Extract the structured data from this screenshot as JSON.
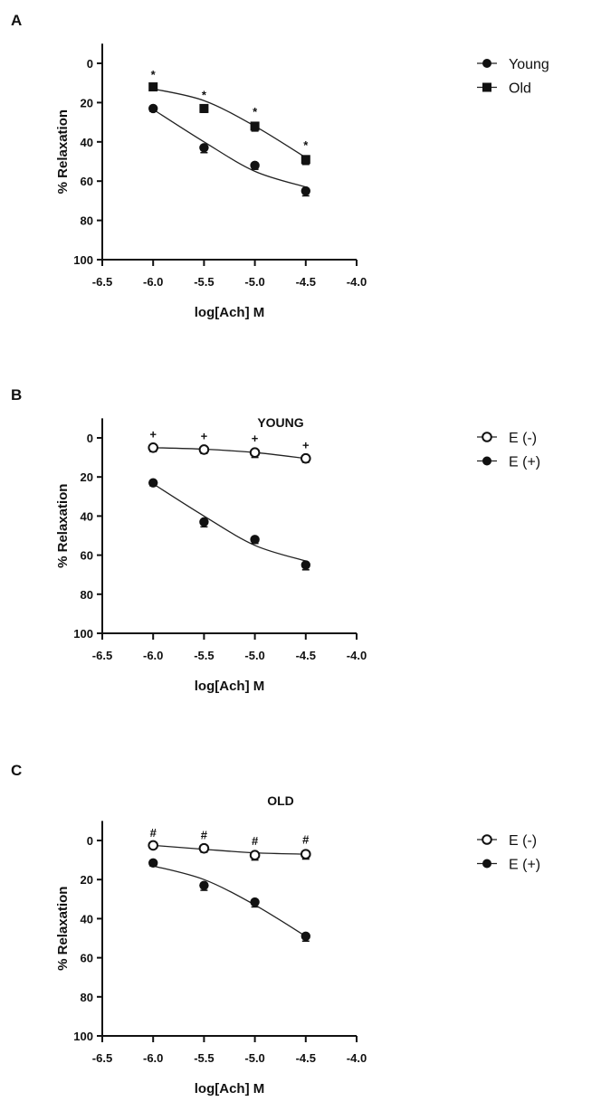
{
  "chart_data": [
    {
      "type": "line",
      "panel_label": "A",
      "title": "",
      "xlabel": "log[Ach] M",
      "ylabel": "% Relaxation",
      "xlim": [
        -6.5,
        -4.0
      ],
      "ylim": [
        100,
        -10
      ],
      "y_inverted": true,
      "xticks": [
        "-6.5",
        "-6.0",
        "-5.5",
        "-5.0",
        "-4.5",
        "-4.0"
      ],
      "yticks": [
        "0",
        "20",
        "40",
        "60",
        "80",
        "100"
      ],
      "legend_position": "right",
      "x": [
        -6.0,
        -5.5,
        -5.0,
        -4.5
      ],
      "series": [
        {
          "name": "Young",
          "marker": "filled-circle",
          "values": [
            23,
            43,
            52,
            65
          ],
          "errors": [
            1.5,
            2.5,
            2,
            2.5
          ],
          "fit": [
            23.5,
            40,
            55,
            63
          ],
          "annotations": []
        },
        {
          "name": "Old",
          "marker": "filled-square",
          "values": [
            12,
            23,
            32,
            49
          ],
          "errors": [
            1.5,
            2,
            2.5,
            2.5
          ],
          "fit": [
            13,
            19,
            32,
            48
          ],
          "annotations": [
            "*",
            "*",
            "*",
            "*"
          ]
        }
      ]
    },
    {
      "type": "line",
      "panel_label": "B",
      "title": "YOUNG",
      "xlabel": "log[Ach] M",
      "ylabel": "% Relaxation",
      "xlim": [
        -6.5,
        -4.0
      ],
      "ylim": [
        100,
        -10
      ],
      "y_inverted": true,
      "xticks": [
        "-6.5",
        "-6.0",
        "-5.5",
        "-5.0",
        "-4.5",
        "-4.0"
      ],
      "yticks": [
        "0",
        "20",
        "40",
        "60",
        "80",
        "100"
      ],
      "legend_position": "right",
      "x": [
        -6.0,
        -5.5,
        -5.0,
        -4.5
      ],
      "series": [
        {
          "name": "E (-)",
          "marker": "open-circle",
          "values": [
            5,
            6,
            7.5,
            10.5
          ],
          "errors": [
            2,
            2,
            2.5,
            2
          ],
          "fit": [
            5,
            5.8,
            7.5,
            10.5
          ],
          "annotations": [
            "+",
            "+",
            "+",
            "+"
          ]
        },
        {
          "name": "E (+)",
          "marker": "filled-circle",
          "values": [
            23,
            43,
            52,
            65
          ],
          "errors": [
            1.5,
            2.5,
            2,
            2.5
          ],
          "fit": [
            23.5,
            40,
            55,
            63
          ],
          "annotations": []
        }
      ]
    },
    {
      "type": "line",
      "panel_label": "C",
      "title": "OLD",
      "xlabel": "log[Ach] M",
      "ylabel": "% Relaxation",
      "xlim": [
        -6.5,
        -4.0
      ],
      "ylim": [
        100,
        -10
      ],
      "y_inverted": true,
      "xticks": [
        "-6.5",
        "-6.0",
        "-5.5",
        "-5.0",
        "-4.5",
        "-4.0"
      ],
      "yticks": [
        "0",
        "20",
        "40",
        "60",
        "80",
        "100"
      ],
      "legend_position": "right",
      "x": [
        -6.0,
        -5.5,
        -5.0,
        -4.5
      ],
      "series": [
        {
          "name": "E (-)",
          "marker": "open-circle",
          "values": [
            2.5,
            4,
            7.5,
            7
          ],
          "errors": [
            1.5,
            2,
            2.5,
            2.5
          ],
          "fit": [
            2.5,
            4.5,
            6.3,
            7
          ],
          "annotations": [
            "#",
            "#",
            "#",
            "#"
          ]
        },
        {
          "name": "E (+)",
          "marker": "filled-circle",
          "values": [
            11.5,
            23,
            31.5,
            49
          ],
          "errors": [
            1.5,
            2.5,
            2.5,
            2.5
          ],
          "fit": [
            13,
            20,
            33,
            49
          ],
          "annotations": []
        }
      ]
    }
  ]
}
